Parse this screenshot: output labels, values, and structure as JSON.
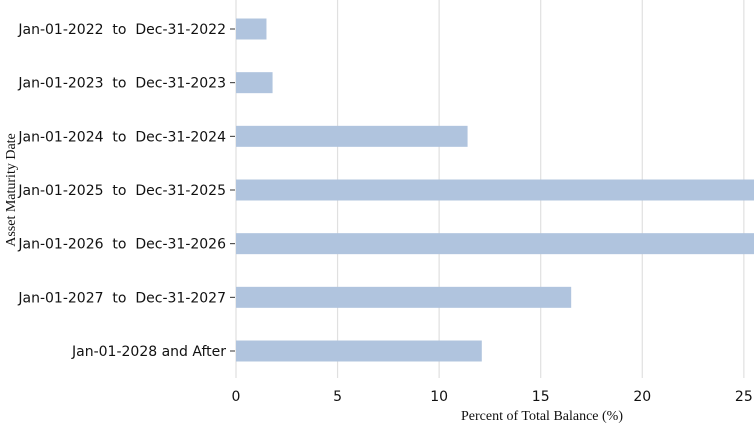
{
  "chart_data": {
    "type": "bar",
    "orientation": "horizontal",
    "categories": [
      "Jan-01-2022  to  Dec-31-2022",
      "Jan-01-2023  to  Dec-31-2023",
      "Jan-01-2024  to  Dec-31-2024",
      "Jan-01-2025  to  Dec-31-2025",
      "Jan-01-2026  to  Dec-31-2026",
      "Jan-01-2027  to  Dec-31-2027",
      "Jan-01-2028 and After"
    ],
    "values": [
      1.5,
      1.8,
      11.4,
      27.0,
      27.0,
      16.5,
      12.1
    ],
    "xlabel": "Percent of Total Balance (%)",
    "ylabel": "Asset Maturity Date",
    "xlim": [
      0,
      25.5
    ],
    "xticks": [
      0,
      5,
      10,
      15,
      20,
      25
    ],
    "grid": "vertical",
    "bar_color": "#b0c4de"
  }
}
